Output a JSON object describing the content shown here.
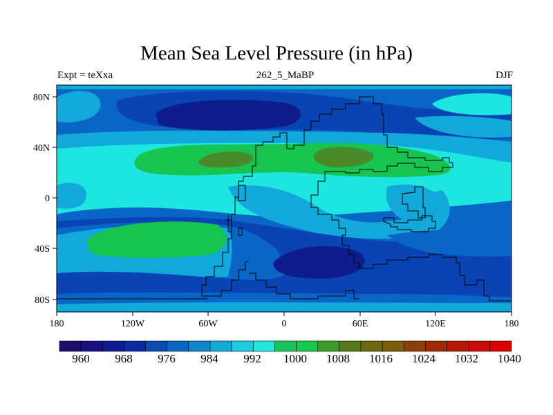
{
  "title": "Mean Sea Level Pressure (in hPa)",
  "subtitle_left": "Expt = teXxa",
  "subtitle_center": "262_5_MaBP",
  "subtitle_right": "DJF",
  "x_ticks": [
    "180",
    "120W",
    "60W",
    "0",
    "60E",
    "120E",
    "180"
  ],
  "y_ticks": [
    "80N",
    "40N",
    "0",
    "40S",
    "80S"
  ],
  "colorbar": {
    "labels": [
      "960",
      "968",
      "976",
      "984",
      "992",
      "1000",
      "1008",
      "1016",
      "1024",
      "1032",
      "1040"
    ],
    "colors": [
      "#1a0e6a",
      "#160f80",
      "#101a90",
      "#0c2aa0",
      "#0a4cb0",
      "#0b66bf",
      "#0d86cc",
      "#13aad8",
      "#1ecbe0",
      "#27e6dd",
      "#18c45a",
      "#17c94e",
      "#3d9a28",
      "#567a1a",
      "#6b6a10",
      "#7d5c0c",
      "#8a400a",
      "#a02a08",
      "#b41a08",
      "#c80c0c",
      "#dd0000"
    ]
  },
  "map_colors": {
    "deep": "#0f1c8c",
    "dark": "#0a44b4",
    "mid": "#0a66c6",
    "light": "#12a8da",
    "cyan": "#1de6e0",
    "green": "#18c450",
    "olive": "#4a8a2a"
  }
}
